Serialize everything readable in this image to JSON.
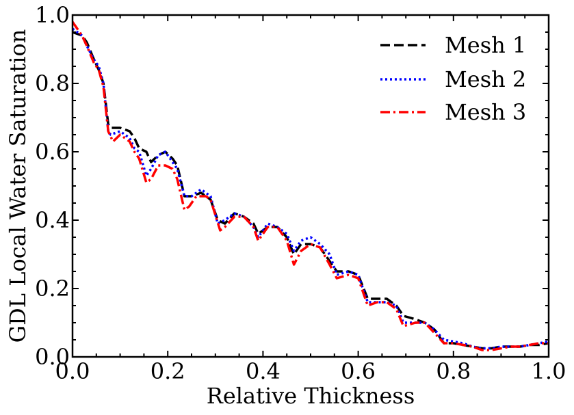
{
  "chart_data": {
    "type": "line",
    "title": "",
    "xlabel": "Relative Thickness",
    "ylabel": "GDL Local Water Saturation",
    "xlim": [
      0.0,
      1.0
    ],
    "ylim": [
      0.0,
      1.0
    ],
    "x_ticks": [
      "0.0",
      "0.2",
      "0.4",
      "0.6",
      "0.8",
      "1.0"
    ],
    "y_ticks": [
      "0.0",
      "0.2",
      "0.4",
      "0.6",
      "0.8",
      "1.0"
    ],
    "legend_position": "top-right",
    "grid": false,
    "series": [
      {
        "name": "Mesh 1",
        "color": "#000000",
        "style": "dashed",
        "x": [
          0.0,
          0.02,
          0.03,
          0.045,
          0.055,
          0.065,
          0.075,
          0.08,
          0.1,
          0.12,
          0.13,
          0.14,
          0.155,
          0.165,
          0.18,
          0.195,
          0.21,
          0.22,
          0.235,
          0.25,
          0.27,
          0.29,
          0.305,
          0.32,
          0.34,
          0.36,
          0.38,
          0.39,
          0.41,
          0.43,
          0.45,
          0.465,
          0.48,
          0.5,
          0.52,
          0.54,
          0.555,
          0.58,
          0.6,
          0.62,
          0.64,
          0.66,
          0.68,
          0.695,
          0.72,
          0.74,
          0.76,
          0.78,
          0.8,
          0.82,
          0.84,
          0.86,
          0.88,
          0.9,
          0.92,
          0.94,
          0.96,
          0.98,
          1.0
        ],
        "y": [
          0.95,
          0.94,
          0.92,
          0.87,
          0.84,
          0.8,
          0.68,
          0.67,
          0.67,
          0.66,
          0.64,
          0.61,
          0.6,
          0.57,
          0.59,
          0.6,
          0.58,
          0.56,
          0.47,
          0.47,
          0.48,
          0.46,
          0.4,
          0.39,
          0.42,
          0.41,
          0.39,
          0.36,
          0.38,
          0.38,
          0.35,
          0.3,
          0.33,
          0.33,
          0.32,
          0.28,
          0.25,
          0.25,
          0.24,
          0.17,
          0.17,
          0.17,
          0.15,
          0.12,
          0.11,
          0.1,
          0.08,
          0.04,
          0.04,
          0.035,
          0.03,
          0.025,
          0.025,
          0.03,
          0.03,
          0.03,
          0.035,
          0.035,
          0.04
        ]
      },
      {
        "name": "Mesh 2",
        "color": "#0000ff",
        "style": "dotted",
        "x": [
          0.0,
          0.02,
          0.03,
          0.045,
          0.055,
          0.065,
          0.075,
          0.08,
          0.1,
          0.12,
          0.13,
          0.14,
          0.155,
          0.165,
          0.18,
          0.195,
          0.21,
          0.22,
          0.235,
          0.25,
          0.27,
          0.29,
          0.305,
          0.32,
          0.34,
          0.36,
          0.38,
          0.39,
          0.41,
          0.43,
          0.45,
          0.465,
          0.48,
          0.5,
          0.52,
          0.54,
          0.555,
          0.58,
          0.6,
          0.62,
          0.64,
          0.66,
          0.68,
          0.695,
          0.72,
          0.74,
          0.76,
          0.78,
          0.8,
          0.82,
          0.84,
          0.86,
          0.88,
          0.9,
          0.92,
          0.94,
          0.96,
          0.98,
          1.0
        ],
        "y": [
          0.96,
          0.94,
          0.91,
          0.87,
          0.85,
          0.8,
          0.66,
          0.65,
          0.66,
          0.64,
          0.61,
          0.6,
          0.53,
          0.55,
          0.59,
          0.6,
          0.57,
          0.55,
          0.47,
          0.47,
          0.49,
          0.47,
          0.39,
          0.4,
          0.42,
          0.41,
          0.38,
          0.35,
          0.39,
          0.38,
          0.36,
          0.31,
          0.34,
          0.35,
          0.33,
          0.3,
          0.24,
          0.25,
          0.24,
          0.16,
          0.16,
          0.16,
          0.15,
          0.1,
          0.1,
          0.1,
          0.08,
          0.05,
          0.045,
          0.04,
          0.03,
          0.025,
          0.025,
          0.03,
          0.03,
          0.03,
          0.035,
          0.04,
          0.045
        ]
      },
      {
        "name": "Mesh 3",
        "color": "#ff0000",
        "style": "dashdot",
        "x": [
          0.0,
          0.02,
          0.03,
          0.045,
          0.055,
          0.065,
          0.075,
          0.085,
          0.1,
          0.12,
          0.13,
          0.14,
          0.155,
          0.165,
          0.18,
          0.195,
          0.21,
          0.22,
          0.235,
          0.245,
          0.26,
          0.28,
          0.29,
          0.31,
          0.32,
          0.34,
          0.36,
          0.38,
          0.39,
          0.41,
          0.43,
          0.45,
          0.465,
          0.48,
          0.5,
          0.52,
          0.54,
          0.555,
          0.58,
          0.6,
          0.62,
          0.64,
          0.66,
          0.68,
          0.695,
          0.72,
          0.74,
          0.76,
          0.78,
          0.8,
          0.82,
          0.84,
          0.86,
          0.88,
          0.9,
          0.92,
          0.94,
          0.96,
          0.98,
          1.0
        ],
        "y": [
          0.98,
          0.94,
          0.91,
          0.86,
          0.84,
          0.79,
          0.66,
          0.63,
          0.65,
          0.63,
          0.6,
          0.58,
          0.51,
          0.52,
          0.56,
          0.56,
          0.55,
          0.52,
          0.43,
          0.44,
          0.47,
          0.47,
          0.46,
          0.37,
          0.38,
          0.41,
          0.41,
          0.38,
          0.34,
          0.38,
          0.38,
          0.34,
          0.27,
          0.31,
          0.33,
          0.32,
          0.27,
          0.23,
          0.24,
          0.23,
          0.15,
          0.16,
          0.16,
          0.14,
          0.09,
          0.1,
          0.1,
          0.07,
          0.04,
          0.04,
          0.035,
          0.03,
          0.02,
          0.02,
          0.025,
          0.03,
          0.03,
          0.035,
          0.04,
          0.04
        ]
      }
    ]
  }
}
